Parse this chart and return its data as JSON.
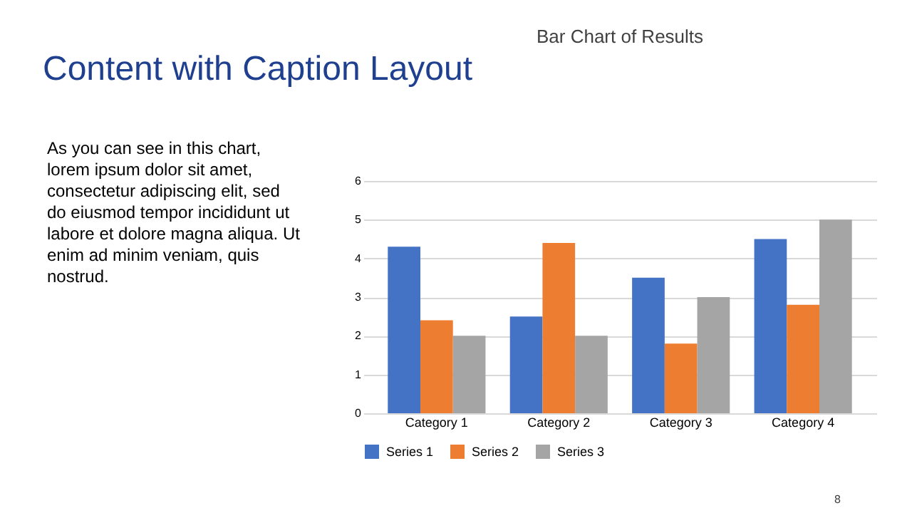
{
  "chart_data": {
    "type": "bar",
    "title": "Bar Chart of Results",
    "categories": [
      "Category 1",
      "Category 2",
      "Category 3",
      "Category 4"
    ],
    "series": [
      {
        "name": "Series 1",
        "color": "#4472c4",
        "values": [
          4.3,
          2.5,
          3.5,
          4.5
        ]
      },
      {
        "name": "Series 2",
        "color": "#ed7d31",
        "values": [
          2.4,
          4.4,
          1.8,
          2.8
        ]
      },
      {
        "name": "Series 3",
        "color": "#a5a5a5",
        "values": [
          2,
          2,
          3,
          5
        ]
      }
    ],
    "ylim": [
      0,
      6
    ],
    "yticks": [
      0,
      1,
      2,
      3,
      4,
      5,
      6
    ],
    "grid": "y",
    "legend": "bottom",
    "annotations": [
      "Content with Caption Layout",
      "As you can see in this chart, lorem ipsum dolor sit amet, consectetur adipiscing elit, sed do eiusmod tempor incididunt ut labore et dolore magna aliqua. Ut enim ad minim veniam, quis nostrud.",
      "8"
    ]
  }
}
